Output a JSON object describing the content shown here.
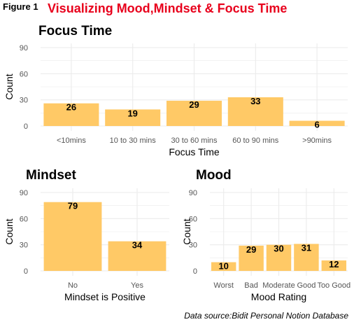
{
  "figure_label": "Figure 1",
  "main_title": "Visualizing Mood,Mindset & Focus Time",
  "source": "Data source:Bidit Personal Notion Database",
  "colors": {
    "bar": "#ffc966",
    "grid": "#ebebeb",
    "title": "#e8001c"
  },
  "chart_data": [
    {
      "type": "bar",
      "title": "Focus Time",
      "xlabel": "Focus Time",
      "ylabel": "Count",
      "ylim": [
        0,
        90
      ],
      "yticks": [
        0,
        30,
        60,
        90
      ],
      "categories": [
        "<10mins",
        "10 to 30 mins",
        "30 to 60 mins",
        "60 to 90 mins",
        ">90mins"
      ],
      "values": [
        26,
        19,
        29,
        33,
        6
      ]
    },
    {
      "type": "bar",
      "title": "Mindset",
      "xlabel": "Mindset is Positive",
      "ylabel": "Count",
      "ylim": [
        0,
        90
      ],
      "yticks": [
        0,
        30,
        60,
        90
      ],
      "categories": [
        "No",
        "Yes"
      ],
      "values": [
        79,
        34
      ]
    },
    {
      "type": "bar",
      "title": "Mood",
      "xlabel": "Mood Rating",
      "ylabel": "Count",
      "ylim": [
        0,
        90
      ],
      "yticks": [
        0,
        30,
        60,
        90
      ],
      "categories": [
        "Worst",
        "Bad",
        "Moderate",
        "Good",
        "Too Good"
      ],
      "values": [
        10,
        29,
        30,
        31,
        12
      ]
    }
  ]
}
